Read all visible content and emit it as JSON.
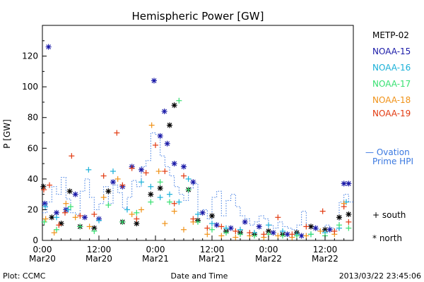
{
  "chart_data": {
    "type": "scatter",
    "title": "Hemispheric Power [GW]",
    "ylabel": "P [GW]",
    "xlabel": "Date and Time",
    "ylim": [
      0,
      140
    ],
    "yticks": [
      0,
      20,
      40,
      60,
      80,
      100,
      120
    ],
    "xlim_hours": [
      0,
      66
    ],
    "xticks": [
      {
        "x": 0,
        "time": "0:00",
        "date": "Mar20"
      },
      {
        "x": 12,
        "time": "12:00",
        "date": "Mar20"
      },
      {
        "x": 24,
        "time": "0:00",
        "date": "Mar21"
      },
      {
        "x": 36,
        "time": "12:00",
        "date": "Mar21"
      },
      {
        "x": 48,
        "time": "0:00",
        "date": "Mar22"
      },
      {
        "x": 60,
        "time": "12:00",
        "date": "Mar22"
      }
    ],
    "series": [
      {
        "name": "METP-02",
        "color": "#000000",
        "marker": "star",
        "points": [
          [
            0.2,
            35
          ],
          [
            2,
            15
          ],
          [
            4,
            11
          ],
          [
            5.8,
            32
          ],
          [
            8,
            9
          ],
          [
            11,
            8
          ],
          [
            14,
            32
          ],
          [
            17,
            12
          ],
          [
            20,
            11
          ],
          [
            23,
            30
          ],
          [
            25,
            34
          ],
          [
            27,
            75
          ],
          [
            28,
            88
          ],
          [
            31,
            33
          ],
          [
            33,
            13
          ],
          [
            36,
            16
          ],
          [
            39,
            6
          ],
          [
            42,
            5
          ],
          [
            45,
            4
          ],
          [
            48,
            6
          ],
          [
            51,
            4
          ],
          [
            54,
            5
          ],
          [
            57,
            9
          ],
          [
            60,
            7
          ],
          [
            63,
            15
          ],
          [
            65,
            17
          ]
        ]
      },
      {
        "name": "NOAA-15",
        "color": "#1a1aa8",
        "marker": "star",
        "points": [
          [
            0.5,
            24
          ],
          [
            1.3,
            126
          ],
          [
            3,
            18
          ],
          [
            5,
            20
          ],
          [
            7,
            30
          ],
          [
            9,
            15
          ],
          [
            12,
            14
          ],
          [
            15,
            38
          ],
          [
            17,
            35
          ],
          [
            19,
            48
          ],
          [
            21,
            46
          ],
          [
            23.7,
            104
          ],
          [
            25,
            68
          ],
          [
            25.9,
            84
          ],
          [
            26.5,
            63
          ],
          [
            28,
            50
          ],
          [
            30,
            48
          ],
          [
            32,
            38
          ],
          [
            34,
            18
          ],
          [
            37,
            10
          ],
          [
            40,
            8
          ],
          [
            43,
            12
          ],
          [
            46,
            9
          ],
          [
            49,
            5
          ],
          [
            52,
            4
          ],
          [
            55,
            3
          ],
          [
            58,
            8
          ],
          [
            61,
            7
          ],
          [
            64,
            37
          ],
          [
            65,
            37
          ]
        ]
      },
      {
        "name": "NOAA-16",
        "color": "#19b0d8",
        "marker": "plus",
        "points": [
          [
            0.6,
            22
          ],
          [
            3,
            15
          ],
          [
            5.5,
            20
          ],
          [
            9.8,
            46
          ],
          [
            12,
            13
          ],
          [
            15,
            45
          ],
          [
            18,
            20
          ],
          [
            21,
            38
          ],
          [
            23,
            35
          ],
          [
            25,
            28
          ],
          [
            27,
            30
          ],
          [
            29,
            25
          ],
          [
            31,
            40
          ],
          [
            33,
            17
          ],
          [
            36,
            11
          ],
          [
            39,
            8
          ],
          [
            42,
            7
          ],
          [
            45,
            5
          ],
          [
            48,
            10
          ],
          [
            51,
            6
          ],
          [
            54,
            4
          ],
          [
            57,
            4
          ],
          [
            60,
            5
          ],
          [
            63,
            8
          ],
          [
            64.5,
            25
          ]
        ]
      },
      {
        "name": "NOAA-17",
        "color": "#37e070",
        "marker": "plus",
        "points": [
          [
            0.4,
            12
          ],
          [
            3,
            7
          ],
          [
            6,
            22
          ],
          [
            8,
            9
          ],
          [
            11,
            6
          ],
          [
            14,
            23
          ],
          [
            17,
            12
          ],
          [
            20,
            18
          ],
          [
            23,
            25
          ],
          [
            25,
            38
          ],
          [
            27,
            25
          ],
          [
            29,
            91
          ],
          [
            31,
            33
          ],
          [
            33,
            12
          ],
          [
            36,
            7
          ],
          [
            39,
            5
          ],
          [
            42,
            4
          ],
          [
            45,
            3
          ],
          [
            48,
            4
          ],
          [
            51,
            3
          ],
          [
            54,
            3
          ],
          [
            57,
            4
          ],
          [
            60,
            3
          ],
          [
            63,
            10
          ],
          [
            65,
            8
          ]
        ]
      },
      {
        "name": "NOAA-18",
        "color": "#f09218",
        "marker": "plus",
        "points": [
          [
            0.7,
            14
          ],
          [
            2.5,
            5
          ],
          [
            5,
            24
          ],
          [
            7,
            15
          ],
          [
            10,
            9
          ],
          [
            13,
            28
          ],
          [
            16,
            40
          ],
          [
            19,
            17
          ],
          [
            21,
            20
          ],
          [
            23.2,
            75
          ],
          [
            24.7,
            45
          ],
          [
            26,
            11
          ],
          [
            28,
            19
          ],
          [
            30,
            7
          ],
          [
            32,
            12
          ],
          [
            35,
            4
          ],
          [
            38,
            3
          ],
          [
            41,
            2
          ],
          [
            44,
            3
          ],
          [
            47,
            2
          ],
          [
            50,
            3
          ],
          [
            53,
            2
          ],
          [
            56,
            3
          ],
          [
            59,
            6
          ],
          [
            62,
            4
          ],
          [
            64,
            24
          ]
        ]
      },
      {
        "name": "NOAA-19",
        "color": "#e23a10",
        "marker": "plus",
        "points": [
          [
            0.3,
            33
          ],
          [
            1.5,
            36
          ],
          [
            3.5,
            10
          ],
          [
            4.8,
            18
          ],
          [
            6.2,
            55
          ],
          [
            8,
            16
          ],
          [
            11,
            17
          ],
          [
            13,
            42
          ],
          [
            15.8,
            70
          ],
          [
            17,
            36
          ],
          [
            19,
            47
          ],
          [
            20,
            14
          ],
          [
            22,
            44
          ],
          [
            24,
            62
          ],
          [
            26,
            45
          ],
          [
            28,
            24
          ],
          [
            30,
            42
          ],
          [
            32,
            14
          ],
          [
            35,
            8
          ],
          [
            38,
            9
          ],
          [
            41,
            6
          ],
          [
            44,
            5
          ],
          [
            47,
            4
          ],
          [
            50,
            15
          ],
          [
            53,
            4
          ],
          [
            56,
            9
          ],
          [
            59.5,
            19
          ],
          [
            62,
            6
          ],
          [
            64,
            22
          ],
          [
            65,
            12
          ]
        ]
      }
    ],
    "hpi_model": {
      "name": "Ovation Prime HPI",
      "color": "#3a78e0",
      "steps": [
        [
          0,
          18
        ],
        [
          1,
          25
        ],
        [
          2,
          35
        ],
        [
          3,
          30
        ],
        [
          4,
          41
        ],
        [
          5,
          27
        ],
        [
          6,
          18
        ],
        [
          7,
          17
        ],
        [
          8,
          32
        ],
        [
          9,
          40
        ],
        [
          10,
          28
        ],
        [
          11,
          20
        ],
        [
          12,
          24
        ],
        [
          13,
          35
        ],
        [
          14,
          24
        ],
        [
          15,
          36
        ],
        [
          16,
          31
        ],
        [
          17,
          21
        ],
        [
          18,
          28
        ],
        [
          19,
          39
        ],
        [
          20,
          35
        ],
        [
          21,
          48
        ],
        [
          22,
          52
        ],
        [
          23,
          70
        ],
        [
          24,
          69
        ],
        [
          25,
          55
        ],
        [
          26,
          48
        ],
        [
          27,
          42
        ],
        [
          28,
          35
        ],
        [
          29,
          30
        ],
        [
          30,
          26
        ],
        [
          31,
          34
        ],
        [
          32,
          37
        ],
        [
          33,
          18
        ],
        [
          34,
          20
        ],
        [
          35,
          14
        ],
        [
          36,
          28
        ],
        [
          37,
          32
        ],
        [
          38,
          16
        ],
        [
          39,
          26
        ],
        [
          40,
          30
        ],
        [
          41,
          22
        ],
        [
          42,
          16
        ],
        [
          43,
          14
        ],
        [
          44,
          10
        ],
        [
          45,
          12
        ],
        [
          46,
          16
        ],
        [
          47,
          14
        ],
        [
          48,
          10
        ],
        [
          49,
          8
        ],
        [
          50,
          12
        ],
        [
          51,
          9
        ],
        [
          52,
          8
        ],
        [
          53,
          7
        ],
        [
          54,
          10
        ],
        [
          55,
          19
        ],
        [
          56,
          10
        ],
        [
          57,
          8
        ],
        [
          58,
          7
        ],
        [
          59,
          6
        ],
        [
          60,
          10
        ],
        [
          61,
          8
        ],
        [
          62,
          7
        ],
        [
          63,
          25
        ],
        [
          64,
          30
        ],
        [
          65,
          25
        ],
        [
          66,
          25
        ]
      ]
    },
    "legend": {
      "placement": "right",
      "items": [
        "METP-02",
        "NOAA-15",
        "NOAA-16",
        "NOAA-17",
        "NOAA-18",
        "NOAA-19"
      ],
      "model_label_1": "— Ovation",
      "model_label_2": "Prime HPI",
      "south_label": "+ south",
      "north_label": "* north"
    },
    "footer": {
      "left": "Plot: CCMC",
      "center": "Date and Time",
      "right": "2013/03/22 23:45:06"
    }
  }
}
